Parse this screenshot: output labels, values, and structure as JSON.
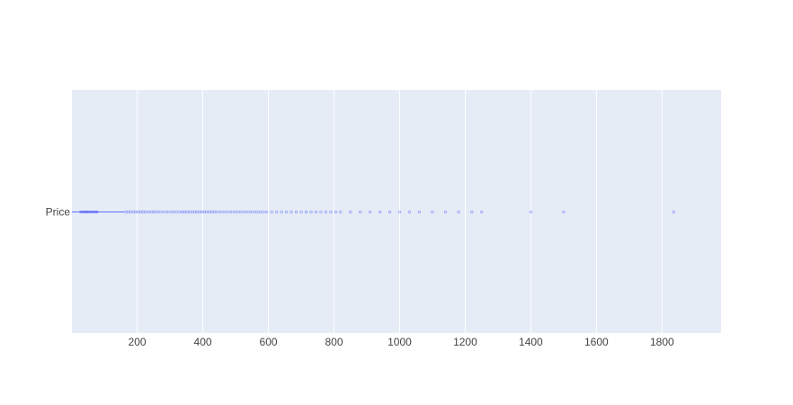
{
  "chart_data": {
    "type": "box",
    "orientation": "horizontal",
    "title": "",
    "xlabel": "",
    "ylabel": "",
    "categories": [
      "Price"
    ],
    "xlim": [
      1,
      1980
    ],
    "xticks": [
      200,
      400,
      600,
      800,
      1000,
      1200,
      1400,
      1600,
      1800
    ],
    "grid": true,
    "series": [
      {
        "category": "Price",
        "min": 1,
        "q1": 25,
        "median": 45,
        "q3": 80,
        "upper_fence": 160,
        "outliers": [
          165,
          172,
          180,
          188,
          195,
          203,
          210,
          218,
          226,
          235,
          244,
          252,
          261,
          270,
          280,
          290,
          300,
          310,
          320,
          330,
          338,
          345,
          352,
          360,
          368,
          375,
          382,
          390,
          398,
          405,
          412,
          420,
          428,
          436,
          445,
          455,
          465,
          475,
          485,
          495,
          505,
          515,
          525,
          535,
          545,
          555,
          565,
          575,
          585,
          595,
          610,
          625,
          640,
          655,
          670,
          685,
          700,
          715,
          730,
          745,
          760,
          775,
          790,
          805,
          820,
          850,
          880,
          910,
          940,
          970,
          1000,
          1030,
          1060,
          1100,
          1140,
          1180,
          1220,
          1250,
          1400,
          1500,
          1835
        ]
      }
    ],
    "colors": {
      "plot_bg": "#e5ecf6",
      "grid": "#ffffff",
      "box": "#636efa",
      "tick_text": "#444444"
    }
  }
}
